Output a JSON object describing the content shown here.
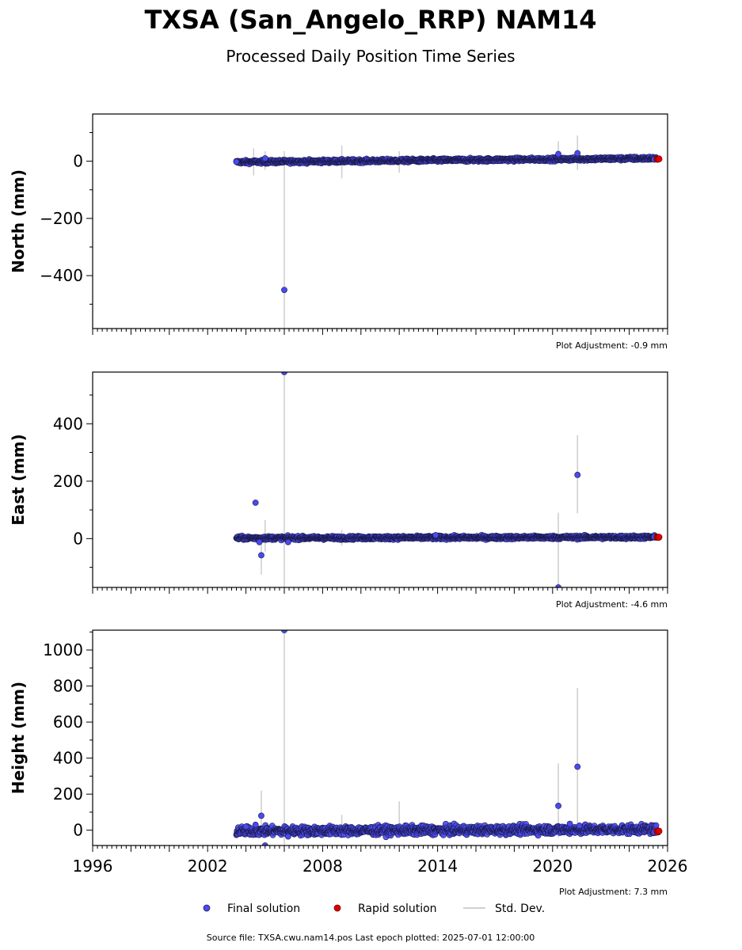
{
  "title": "TXSA (San_Angelo_RRP) NAM14",
  "subtitle": "Processed Daily Position Time Series",
  "source_text": "Source file: TXSA.cwu.nam14.pos  Last epoch plotted: 2025-07-01 12:00:00",
  "colors": {
    "final": "#4a4aee",
    "final_edge": "#1a1a4a",
    "rapid": "#e00000",
    "stddev": "#d0d0d0"
  },
  "legend": {
    "final": "Final solution",
    "rapid": "Rapid solution",
    "stddev": "Std. Dev."
  },
  "chart_data": [
    {
      "type": "scatter",
      "ylabel": "North (mm)",
      "adjustment": "Plot Adjustment: -0.9 mm",
      "xlim": [
        1996,
        2026
      ],
      "ylim": [
        -585,
        165
      ],
      "yticks": [
        0,
        -200,
        -400
      ],
      "ytick_labels": [
        "0",
        "−200",
        "−400"
      ],
      "xtick_labels": [],
      "series": [
        {
          "name": "Final solution",
          "start": 2003.5,
          "end": 2025.4,
          "trend": [
            -3,
            10
          ],
          "noise": 3
        },
        {
          "name": "Rapid solution",
          "points": [
            [
              2025.45,
              7
            ],
            [
              2025.5,
              7
            ],
            [
              2025.55,
              8
            ]
          ]
        }
      ],
      "outliers": [
        [
          2003.5,
          -2
        ],
        [
          2005.0,
          10
        ],
        [
          2006.0,
          -450
        ],
        [
          2020.3,
          25
        ],
        [
          2021.3,
          28
        ],
        [
          2025.3,
          6
        ]
      ],
      "error_bars": [
        [
          2004.4,
          -50,
          45
        ],
        [
          2005.0,
          -30,
          35
        ],
        [
          2006.0,
          -590,
          35
        ],
        [
          2009.0,
          -60,
          55
        ],
        [
          2012.0,
          -40,
          35
        ],
        [
          2020.3,
          -10,
          70
        ],
        [
          2021.3,
          -30,
          90
        ]
      ]
    },
    {
      "type": "scatter",
      "ylabel": "East (mm)",
      "adjustment": "Plot Adjustment: -4.6 mm",
      "xlim": [
        1996,
        2026
      ],
      "ylim": [
        -170,
        580
      ],
      "yticks": [
        400,
        200,
        0
      ],
      "ytick_labels": [
        "400",
        "200",
        "0"
      ],
      "xtick_labels": [],
      "series": [
        {
          "name": "Final solution",
          "start": 2003.5,
          "end": 2025.4,
          "trend": [
            2,
            5
          ],
          "noise": 3
        },
        {
          "name": "Rapid solution",
          "points": [
            [
              2025.45,
              5
            ],
            [
              2025.5,
              5
            ],
            [
              2025.55,
              5
            ]
          ]
        }
      ],
      "outliers": [
        [
          2004.5,
          125
        ],
        [
          2004.7,
          -12
        ],
        [
          2004.8,
          -58
        ],
        [
          2006.0,
          580
        ],
        [
          2006.2,
          -12
        ],
        [
          2013.9,
          12
        ],
        [
          2020.3,
          -170
        ],
        [
          2021.3,
          222
        ],
        [
          2025.3,
          6
        ]
      ],
      "error_bars": [
        [
          2004.8,
          -125,
          10
        ],
        [
          2005.0,
          -45,
          65
        ],
        [
          2006.0,
          -175,
          580
        ],
        [
          2009.0,
          -25,
          30
        ],
        [
          2020.3,
          -175,
          90
        ],
        [
          2021.3,
          88,
          360
        ]
      ]
    },
    {
      "type": "scatter",
      "ylabel": "Height (mm)",
      "adjustment": "Plot Adjustment: 7.3 mm",
      "xlim": [
        1996,
        2026
      ],
      "ylim": [
        -85,
        1110
      ],
      "yticks": [
        1000,
        800,
        600,
        400,
        200,
        0
      ],
      "ytick_labels": [
        "1000",
        "800",
        "600",
        "400",
        "200",
        "0"
      ],
      "xticks": [
        1996,
        2002,
        2008,
        2014,
        2020,
        2026
      ],
      "xtick_labels": [
        "1996",
        "2002",
        "2008",
        "2014",
        "2020",
        "2026"
      ],
      "series": [
        {
          "name": "Final solution",
          "start": 2003.5,
          "end": 2025.4,
          "trend": [
            -5,
            5
          ],
          "noise": 12
        },
        {
          "name": "Rapid solution",
          "points": [
            [
              2025.45,
              -5
            ],
            [
              2025.5,
              -10
            ],
            [
              2025.55,
              -5
            ]
          ]
        }
      ],
      "outliers": [
        [
          2004.0,
          20
        ],
        [
          2004.5,
          30
        ],
        [
          2004.8,
          80
        ],
        [
          2005.0,
          -85
        ],
        [
          2006.0,
          1110
        ],
        [
          2006.2,
          -35
        ],
        [
          2020.3,
          135
        ],
        [
          2021.3,
          352
        ],
        [
          2021.4,
          25
        ],
        [
          2020.9,
          35
        ],
        [
          2025.3,
          -10
        ]
      ],
      "error_bars": [
        [
          2004.8,
          -40,
          220
        ],
        [
          2006.0,
          -80,
          1110
        ],
        [
          2009.0,
          -20,
          85
        ],
        [
          2012.0,
          -20,
          160
        ],
        [
          2020.3,
          -40,
          370
        ],
        [
          2021.3,
          -20,
          790
        ]
      ]
    }
  ]
}
